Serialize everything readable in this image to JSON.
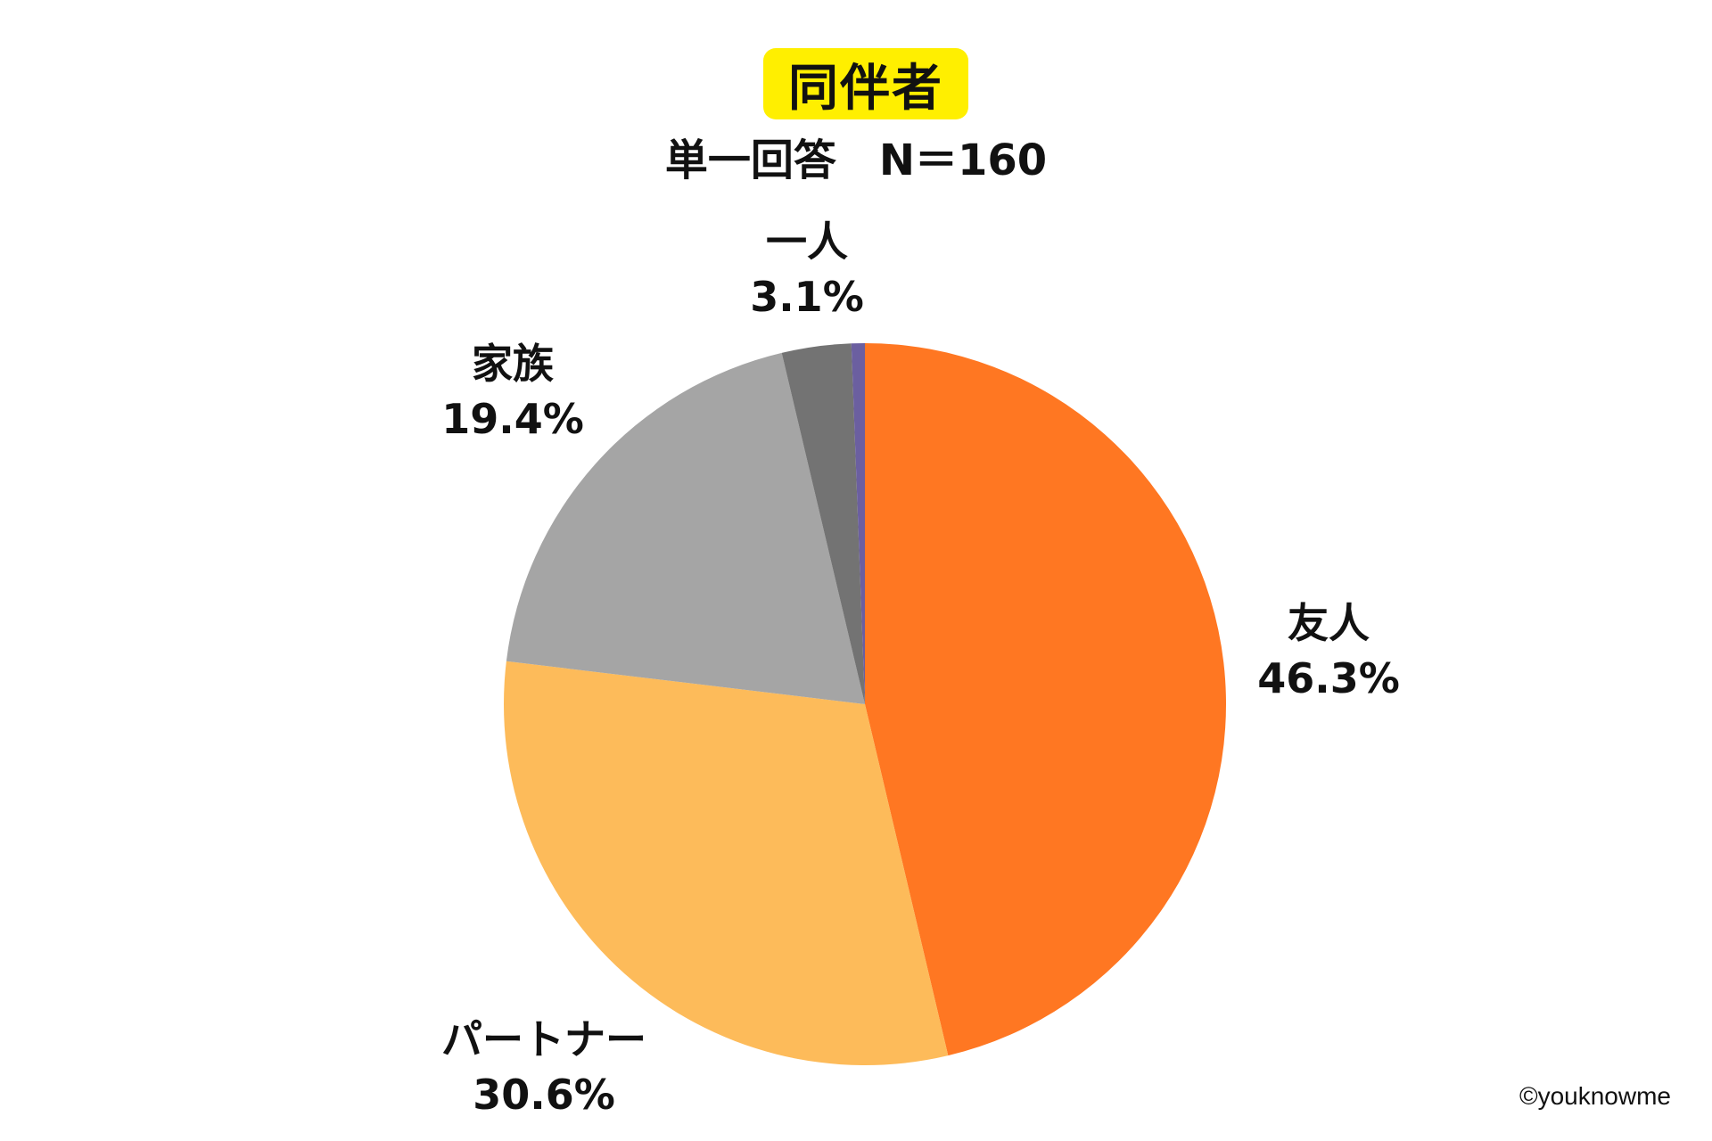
{
  "chart_data": {
    "type": "pie",
    "title": "同伴者",
    "subtitle": "単一回答　N＝160",
    "slices": [
      {
        "name": "友人",
        "value": 46.3,
        "label": "46.3%",
        "color": "#ff7722"
      },
      {
        "name": "パートナー",
        "value": 30.6,
        "label": "30.6%",
        "color": "#fdbb5a"
      },
      {
        "name": "家族",
        "value": 19.4,
        "label": "19.4%",
        "color": "#a5a5a5"
      },
      {
        "name": "一人",
        "value": 3.1,
        "label": "3.1%",
        "color": "#737373"
      },
      {
        "name": "",
        "value": 0.6,
        "label": "",
        "color": "#6b5fa0"
      }
    ],
    "start_angle": "12 o'clock",
    "direction": "clockwise"
  },
  "title_highlight_color": "#ffef00",
  "credit": "©youknowme"
}
